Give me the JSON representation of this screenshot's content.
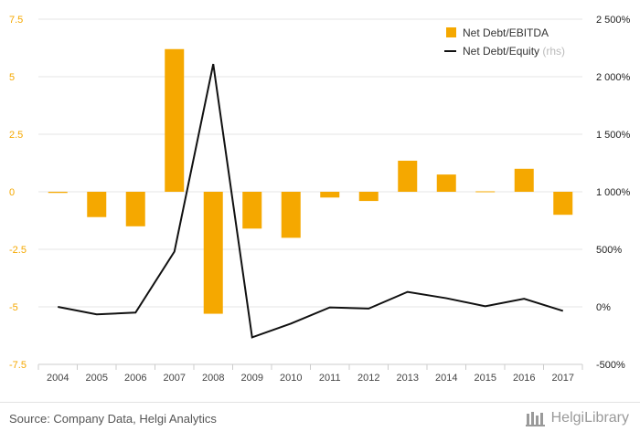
{
  "chart_data": {
    "type": "bar",
    "categories": [
      "2004",
      "2005",
      "2006",
      "2007",
      "2008",
      "2009",
      "2010",
      "2011",
      "2012",
      "2013",
      "2014",
      "2015",
      "2016",
      "2017"
    ],
    "series": [
      {
        "name": "Net Debt/EBITDA",
        "type": "bar",
        "axis": "left",
        "color": "#f5a800",
        "values": [
          -0.05,
          -1.1,
          -1.5,
          6.2,
          -5.3,
          -1.6,
          -2.0,
          -0.25,
          -0.4,
          1.35,
          0.75,
          0.02,
          1.0,
          -1.0
        ]
      },
      {
        "name": "Net Debt/Equity",
        "name_suffix": "(rhs)",
        "type": "line",
        "axis": "right",
        "color": "#111111",
        "values": [
          0,
          -65,
          -50,
          480,
          2110,
          -265,
          -145,
          -5,
          -15,
          130,
          75,
          5,
          70,
          -35
        ]
      }
    ],
    "y_left": {
      "ylim": [
        -7.5,
        7.5
      ],
      "ticks": [
        7.5,
        5,
        2.5,
        0,
        -2.5,
        -5,
        -7.5
      ],
      "tick_labels": [
        "7.5",
        "5",
        "2.5",
        "0",
        "-2.5",
        "-5",
        "-7.5"
      ]
    },
    "y_right": {
      "ylim": [
        -500,
        2500
      ],
      "ticks": [
        2500,
        2000,
        1500,
        1000,
        500,
        0,
        -500
      ],
      "tick_labels": [
        "2 500%",
        "2 000%",
        "1 500%",
        "1 000%",
        "500%",
        "0%",
        "-500%"
      ]
    },
    "grid": true,
    "legend_position": "top-right"
  },
  "footer": {
    "source": "Source: Company Data, Helgi Analytics",
    "brand": "HelgiLibrary"
  }
}
